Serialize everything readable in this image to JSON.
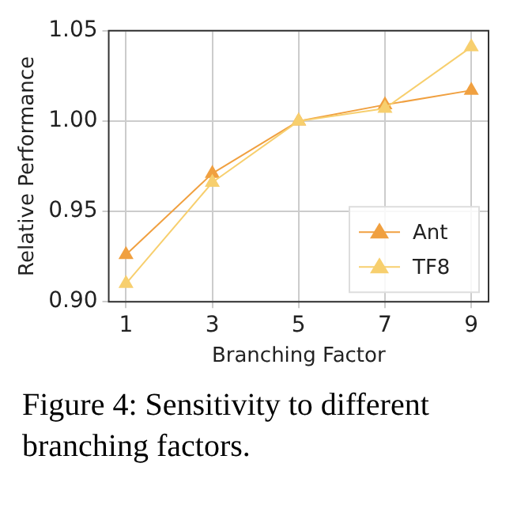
{
  "chart_data": {
    "type": "line",
    "xlabel": "Branching Factor",
    "ylabel": "Relative Performance",
    "x": [
      1,
      3,
      5,
      7,
      9
    ],
    "series": [
      {
        "name": "Ant",
        "color": "#f0a040",
        "values": [
          0.926,
          0.971,
          1.0,
          1.009,
          1.017
        ]
      },
      {
        "name": "TF8",
        "color": "#f7cf6e",
        "values": [
          0.91,
          0.966,
          1.0,
          1.007,
          1.041
        ]
      }
    ],
    "xlim": [
      0.6,
      9.4
    ],
    "xticks": [
      1,
      3,
      5,
      7,
      9
    ],
    "ylim": [
      0.9,
      1.05
    ],
    "yticks": [
      {
        "value": 0.9,
        "label": "0.90"
      },
      {
        "value": 0.95,
        "label": "0.95"
      },
      {
        "value": 1.0,
        "label": "1.00"
      },
      {
        "value": 1.05,
        "label": "1.05"
      }
    ],
    "grid": true,
    "legend": "bottom right",
    "marker": "triangle",
    "line_style": "solid",
    "annotations": [
      "Figure 4: Sensitivity to different branching factors."
    ]
  }
}
